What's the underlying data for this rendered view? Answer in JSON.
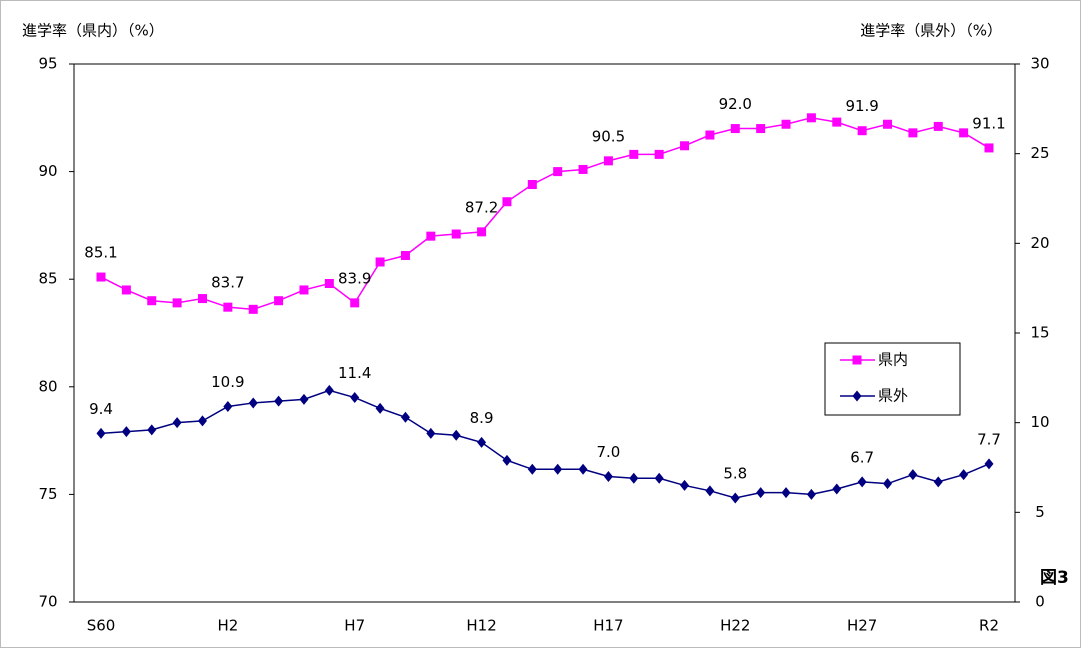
{
  "chart_data": {
    "type": "line",
    "y_label": "進学率（県内）（%）",
    "y2_label": "進学率（県外）（%）",
    "annotation": "図3",
    "categories": [
      "S60",
      null,
      null,
      null,
      null,
      "H2",
      null,
      null,
      null,
      null,
      "H7",
      null,
      null,
      null,
      null,
      "H12",
      null,
      null,
      null,
      null,
      "H17",
      null,
      null,
      null,
      null,
      "H22",
      null,
      null,
      null,
      null,
      "H27",
      null,
      null,
      null,
      null,
      "R2"
    ],
    "ylim": [
      70,
      95
    ],
    "yticks": [
      70,
      75,
      80,
      85,
      90,
      95
    ],
    "y2lim": [
      0,
      30
    ],
    "y2ticks": [
      0,
      5,
      10,
      15,
      20,
      25,
      30
    ],
    "legend": "right",
    "series": [
      {
        "name": "県内",
        "color": "#ff00ff",
        "marker": "square",
        "values": [
          85.1,
          84.5,
          84.0,
          83.9,
          84.1,
          83.7,
          83.6,
          84.0,
          84.5,
          84.8,
          83.9,
          85.8,
          86.1,
          87.0,
          87.1,
          87.2,
          88.6,
          89.4,
          90.0,
          90.1,
          90.5,
          90.8,
          90.8,
          91.2,
          91.7,
          92.0,
          92.0,
          92.2,
          92.5,
          92.3,
          91.9,
          92.2,
          91.8,
          92.1,
          91.8,
          91.1
        ],
        "value_labels": [
          "85.1",
          null,
          null,
          null,
          null,
          "83.7",
          null,
          null,
          null,
          null,
          "83.9",
          null,
          null,
          null,
          null,
          "87.2",
          null,
          null,
          null,
          null,
          "90.5",
          null,
          null,
          null,
          null,
          "92.0",
          null,
          null,
          null,
          null,
          "91.9",
          null,
          null,
          null,
          null,
          "91.1"
        ]
      },
      {
        "name": "県外",
        "color": "#000080",
        "marker": "diamond",
        "axis": "y2",
        "values": [
          9.4,
          9.5,
          9.6,
          10.0,
          10.1,
          10.9,
          11.1,
          11.2,
          11.3,
          11.8,
          11.4,
          10.8,
          10.3,
          9.4,
          9.3,
          8.9,
          7.9,
          7.4,
          7.4,
          7.4,
          7.0,
          6.9,
          6.9,
          6.5,
          6.2,
          5.8,
          6.1,
          6.1,
          6.0,
          6.3,
          6.7,
          6.6,
          7.1,
          6.7,
          7.1,
          7.7
        ],
        "value_labels": [
          "9.4",
          null,
          null,
          null,
          null,
          "10.9",
          null,
          null,
          null,
          null,
          "11.4",
          null,
          null,
          null,
          null,
          "8.9",
          null,
          null,
          null,
          null,
          "7.0",
          null,
          null,
          null,
          null,
          "5.8",
          null,
          null,
          null,
          null,
          "6.7",
          null,
          null,
          null,
          null,
          "7.7"
        ]
      }
    ]
  }
}
